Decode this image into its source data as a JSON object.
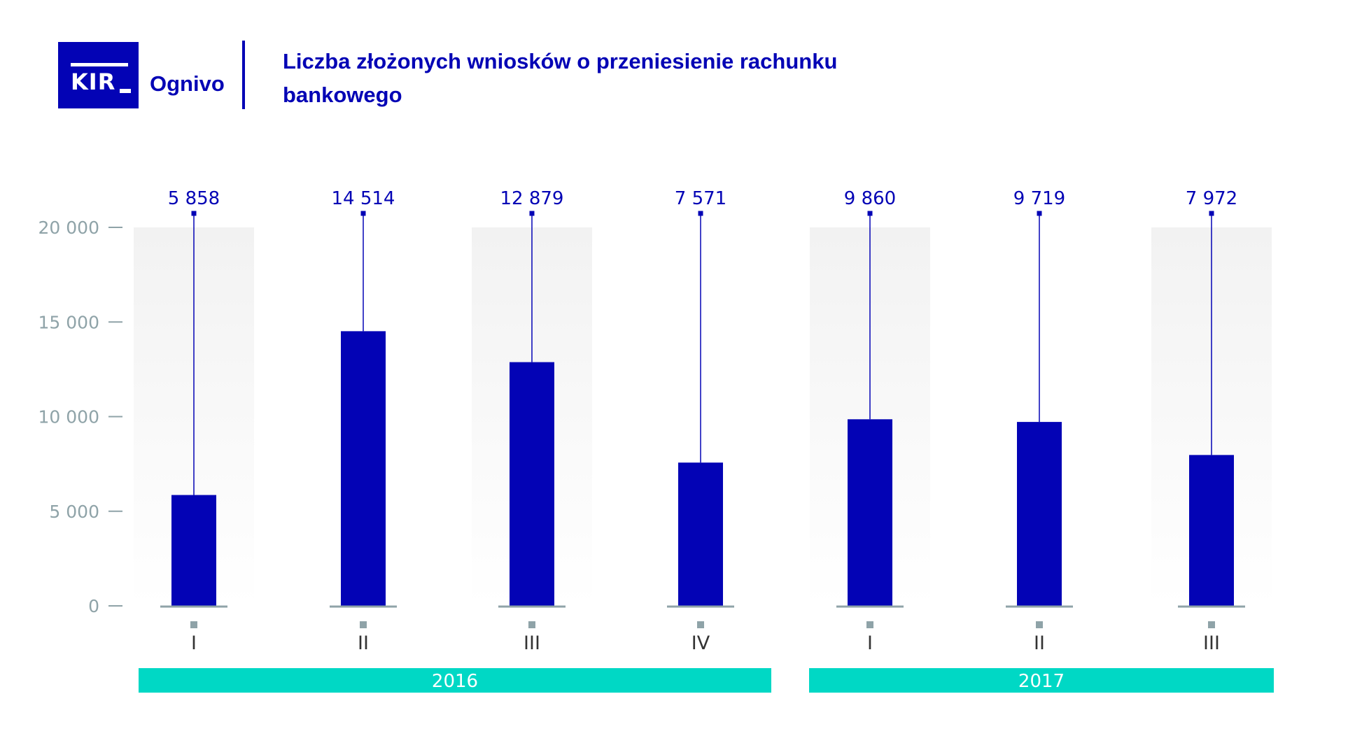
{
  "header": {
    "logo_text": "KIR",
    "brand": "Ognivo",
    "title": "Liczba złożonych wniosków o przeniesienie rachunku bankowego"
  },
  "colors": {
    "bar": "#0303b5",
    "axis_text": "#8fa3a8",
    "year_band": "#00d8c5",
    "column_band": "#f2f2f2",
    "baseline": "#8fa3a8"
  },
  "chart_data": {
    "type": "bar",
    "categories": [
      "I",
      "II",
      "III",
      "IV",
      "I",
      "II",
      "III"
    ],
    "values": [
      5858,
      14514,
      12879,
      7571,
      9860,
      9719,
      7972
    ],
    "value_labels": [
      "5 858",
      "14 514",
      "12 879",
      "7 571",
      "9 860",
      "9 719",
      "7 972"
    ],
    "groups": [
      {
        "label": "2016",
        "categories": [
          0,
          1,
          2,
          3
        ]
      },
      {
        "label": "2017",
        "categories": [
          4,
          5,
          6
        ]
      }
    ],
    "yticks": [
      {
        "value": 0,
        "label": "0"
      },
      {
        "value": 5000,
        "label": "5 000"
      },
      {
        "value": 10000,
        "label": "10 000"
      },
      {
        "value": 15000,
        "label": "15 000"
      },
      {
        "value": 20000,
        "label": "20 000"
      }
    ],
    "ylim": [
      0,
      20000
    ],
    "title": "Liczba złożonych wniosków o przeniesienie rachunku bankowego",
    "xlabel": "",
    "ylabel": "",
    "grid": false,
    "legend": "none"
  }
}
